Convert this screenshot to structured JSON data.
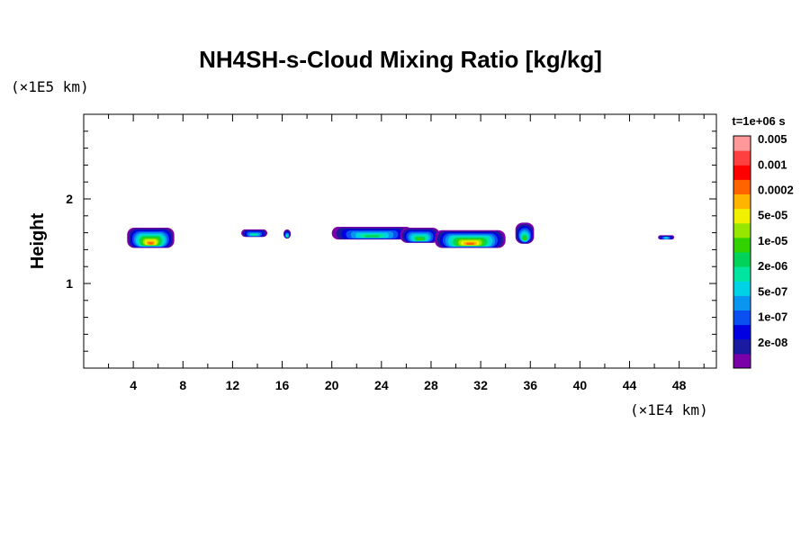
{
  "chart_data": {
    "type": "heatmap",
    "title": "NH4SH-s-Cloud Mixing Ratio [kg/kg]",
    "ylabel": "Height",
    "xunit": "(×1E4 km)",
    "yunit": "(×1E5 km)",
    "time_label": "t=1e+06 s",
    "xlim": [
      0,
      51
    ],
    "ylim": [
      0,
      3
    ],
    "x_ticks": [
      "4",
      "8",
      "12",
      "16",
      "20",
      "24",
      "28",
      "32",
      "36",
      "40",
      "44",
      "48"
    ],
    "y_ticks": [
      "1",
      "2"
    ],
    "colorbar": {
      "labels": [
        "0.005",
        "0.001",
        "0.0002",
        "5e-05",
        "1e-05",
        "2e-06",
        "5e-07",
        "1e-07",
        "2e-08"
      ],
      "colors": [
        "#7a00a8",
        "#1a1aa0",
        "#0000e0",
        "#0a50f0",
        "#0a96f0",
        "#00d2e6",
        "#00e6a0",
        "#00d25a",
        "#32d200",
        "#96e600",
        "#f0f000",
        "#ffb400",
        "#ff6400",
        "#ff0000",
        "#ff4040",
        "#ff9999"
      ]
    },
    "clouds": [
      {
        "x0": 3.5,
        "x1": 7.3,
        "y0": 1.42,
        "y1": 1.66,
        "level": 12
      },
      {
        "x0": 12.7,
        "x1": 14.8,
        "y0": 1.55,
        "y1": 1.64,
        "level": 6
      },
      {
        "x0": 16.1,
        "x1": 16.7,
        "y0": 1.53,
        "y1": 1.64,
        "level": 6
      },
      {
        "x0": 20.0,
        "x1": 26.5,
        "y0": 1.52,
        "y1": 1.67,
        "level": 7
      },
      {
        "x0": 25.5,
        "x1": 28.7,
        "y0": 1.48,
        "y1": 1.66,
        "level": 8
      },
      {
        "x0": 28.3,
        "x1": 34.0,
        "y0": 1.42,
        "y1": 1.63,
        "level": 12
      },
      {
        "x0": 34.8,
        "x1": 36.3,
        "y0": 1.47,
        "y1": 1.72,
        "level": 8
      },
      {
        "x0": 46.3,
        "x1": 47.6,
        "y0": 1.52,
        "y1": 1.57,
        "level": 5
      }
    ]
  }
}
